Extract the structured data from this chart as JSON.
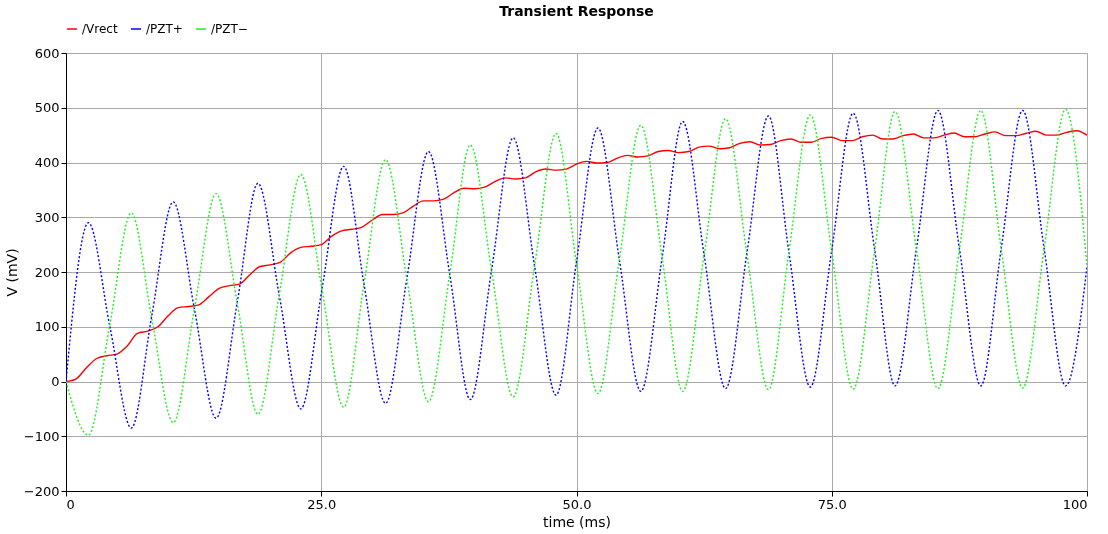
{
  "chart_data": {
    "type": "line",
    "title": "Transient Response",
    "xlabel": "time (ms)",
    "ylabel": "V (mV)",
    "xlim": [
      0,
      100
    ],
    "ylim": [
      -200,
      600
    ],
    "xticks": [
      0,
      {
        "value": 25,
        "label": "25.0"
      },
      {
        "value": 50,
        "label": "50.0"
      },
      {
        "value": 75,
        "label": "75.0"
      },
      100
    ],
    "yticks": [
      -200,
      -100,
      0,
      100,
      200,
      300,
      400,
      500,
      600
    ],
    "grid": true,
    "legend": "top left",
    "series": [
      {
        "name": "/Vrect",
        "color": "#ff0000",
        "line_style": "solid",
        "x": [
          0,
          1,
          2,
          3,
          4,
          5,
          6,
          7,
          8,
          9,
          10,
          11,
          12,
          13,
          14,
          15,
          16,
          17,
          18,
          19,
          20,
          21,
          22,
          23,
          24,
          25,
          26,
          27,
          28,
          29,
          30,
          31,
          32,
          33,
          34,
          35,
          36,
          37,
          38,
          39,
          40,
          41,
          42,
          43,
          44,
          45,
          46,
          47,
          48,
          49,
          50,
          51,
          52,
          53,
          54,
          55,
          56,
          57,
          58,
          59,
          60,
          61,
          62,
          63,
          64,
          65,
          66,
          67,
          68,
          69,
          70,
          71,
          72,
          73,
          74,
          75,
          76,
          77,
          78,
          79,
          80,
          81,
          82,
          83,
          84,
          85,
          86,
          87,
          88,
          89,
          90,
          91,
          92,
          93,
          94,
          95,
          96,
          97,
          98,
          99,
          100
        ],
        "values": [
          0,
          5,
          25,
          42,
          47,
          50,
          65,
          88,
          92,
          100,
          120,
          135,
          137,
          140,
          155,
          170,
          175,
          178,
          195,
          210,
          213,
          218,
          235,
          245,
          247,
          250,
          265,
          275,
          278,
          282,
          295,
          305,
          305,
          308,
          320,
          330,
          330,
          333,
          345,
          353,
          352,
          355,
          365,
          372,
          370,
          372,
          383,
          388,
          386,
          388,
          397,
          402,
          399,
          400,
          408,
          413,
          410,
          412,
          420,
          422,
          418,
          420,
          428,
          430,
          425,
          427,
          435,
          438,
          432,
          433,
          440,
          443,
          437,
          437,
          444,
          446,
          440,
          440,
          447,
          450,
          443,
          443,
          449,
          452,
          445,
          445,
          450,
          454,
          447,
          447,
          452,
          456,
          449,
          449,
          453,
          457,
          450,
          450,
          455,
          458,
          450
        ]
      },
      {
        "name": "/PZT+",
        "color": "#0000ff",
        "line_style": "dotted",
        "x": [
          0,
          2.2,
          4.3,
          6.4,
          8.4,
          10.5,
          12.6,
          14.7,
          16.8,
          18.8,
          20.9,
          23.0,
          25.1,
          27.2,
          29.2,
          31.3,
          33.4,
          35.5,
          37.6,
          39.6,
          41.7,
          43.8,
          45.9,
          48.0,
          50.0,
          52.1,
          54.2,
          56.3,
          58.4,
          60.4,
          62.5,
          64.6,
          66.7,
          68.8,
          70.8,
          72.9,
          75.0,
          77.1,
          79.2,
          81.2,
          83.3,
          85.4,
          87.5,
          89.6,
          91.6,
          93.7,
          95.8,
          97.9,
          100
        ],
        "values": [
          0,
          290,
          100,
          -85,
          120,
          328,
          130,
          -67,
          148,
          362,
          156,
          -50,
          172,
          393,
          176,
          -40,
          190,
          420,
          194,
          -33,
          206,
          445,
          210,
          -25,
          219,
          463,
          222,
          -18,
          228,
          475,
          231,
          -13,
          236,
          485,
          237,
          -10,
          240,
          490,
          241,
          -8,
          243,
          495,
          243,
          -8,
          243,
          495,
          243,
          -8,
          210
        ]
      },
      {
        "name": "/PZT−",
        "color": "#22ee22",
        "line_style": "dotted",
        "x": [
          0,
          2.2,
          4.3,
          6.4,
          8.4,
          10.5,
          12.6,
          14.7,
          16.8,
          18.8,
          20.9,
          23.0,
          25.1,
          27.2,
          29.2,
          31.3,
          33.4,
          35.5,
          37.6,
          39.6,
          41.7,
          43.8,
          45.9,
          48.0,
          50.0,
          52.1,
          54.2,
          56.3,
          58.4,
          60.4,
          62.5,
          64.6,
          66.7,
          68.8,
          70.8,
          72.9,
          75.0,
          77.1,
          79.2,
          81.2,
          83.3,
          85.4,
          87.5,
          89.6,
          91.6,
          93.7,
          95.8,
          97.9,
          100
        ],
        "values": [
          0,
          -98,
          105,
          308,
          115,
          -75,
          135,
          343,
          140,
          -60,
          160,
          378,
          165,
          -47,
          180,
          405,
          185,
          -37,
          198,
          432,
          200,
          -28,
          212,
          453,
          215,
          -22,
          223,
          468,
          225,
          -18,
          231,
          480,
          232,
          -15,
          236,
          487,
          237,
          -14,
          240,
          493,
          240,
          -13,
          241,
          495,
          242,
          -12,
          242,
          497,
          210
        ]
      }
    ]
  }
}
